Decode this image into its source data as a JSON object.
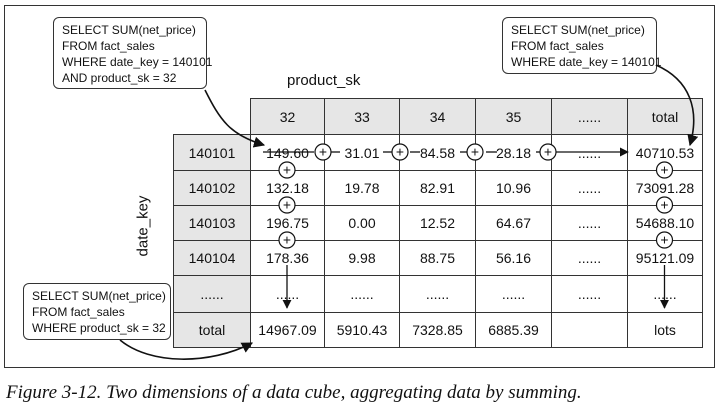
{
  "queries": {
    "top_left": [
      "SELECT SUM(net_price)",
      "FROM fact_sales",
      "WHERE date_key = 140101",
      "AND product_sk = 32"
    ],
    "top_right": [
      "SELECT SUM(net_price)",
      "FROM fact_sales",
      "WHERE date_key = 140101"
    ],
    "bottom_left": [
      "SELECT SUM(net_price)",
      "FROM fact_sales",
      "WHERE product_sk = 32"
    ]
  },
  "axis": {
    "columns_label": "product_sk",
    "rows_label": "date_key"
  },
  "cube": {
    "column_headers": [
      "32",
      "33",
      "34",
      "35",
      "......",
      "total"
    ],
    "rows": [
      {
        "key": "140101",
        "values": [
          "149.60",
          "31.01",
          "84.58",
          "28.18",
          "......",
          "40710.53"
        ]
      },
      {
        "key": "140102",
        "values": [
          "132.18",
          "19.78",
          "82.91",
          "10.96",
          "......",
          "73091.28"
        ]
      },
      {
        "key": "140103",
        "values": [
          "196.75",
          "0.00",
          "12.52",
          "64.67",
          "......",
          "54688.10"
        ]
      },
      {
        "key": "140104",
        "values": [
          "178.36",
          "9.98",
          "88.75",
          "56.16",
          "......",
          "95121.09"
        ]
      },
      {
        "key": "......",
        "values": [
          "......",
          "......",
          "......",
          "......",
          "......",
          "......"
        ]
      },
      {
        "key": "total",
        "values": [
          "14967.09",
          "5910.43",
          "7328.85",
          "6885.39",
          "",
          "lots"
        ]
      }
    ]
  },
  "plus_symbol": "+",
  "caption": "Figure 3-12. Two dimensions of a data cube, aggregating data by summing."
}
